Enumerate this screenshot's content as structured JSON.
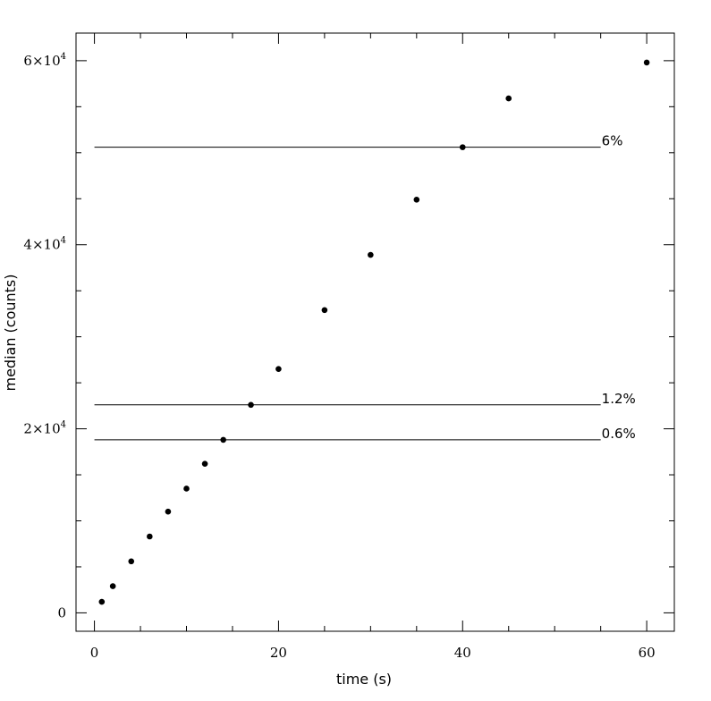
{
  "chart_data": {
    "type": "scatter",
    "xlabel": "time (s)",
    "ylabel": "median (counts)",
    "xlim": [
      -2,
      63
    ],
    "ylim": [
      -2000,
      63000
    ],
    "x_ticks": [
      {
        "value": 0,
        "label": "0"
      },
      {
        "value": 20,
        "label": "20"
      },
      {
        "value": 40,
        "label": "40"
      },
      {
        "value": 60,
        "label": "60"
      }
    ],
    "y_ticks": [
      {
        "value": 0,
        "base": "0",
        "exp": ""
      },
      {
        "value": 20000,
        "base": "2×10",
        "exp": "4"
      },
      {
        "value": 40000,
        "base": "4×10",
        "exp": "4"
      },
      {
        "value": 60000,
        "base": "6×10",
        "exp": "4"
      }
    ],
    "points": [
      {
        "x": 0.8,
        "y": 1200
      },
      {
        "x": 2,
        "y": 2900
      },
      {
        "x": 4,
        "y": 5600
      },
      {
        "x": 6,
        "y": 8300
      },
      {
        "x": 8,
        "y": 11000
      },
      {
        "x": 10,
        "y": 13500
      },
      {
        "x": 12,
        "y": 16200
      },
      {
        "x": 14,
        "y": 18800
      },
      {
        "x": 17,
        "y": 22600
      },
      {
        "x": 20,
        "y": 26500
      },
      {
        "x": 25,
        "y": 32900
      },
      {
        "x": 30,
        "y": 38900
      },
      {
        "x": 35,
        "y": 44900
      },
      {
        "x": 40,
        "y": 50600
      },
      {
        "x": 45,
        "y": 55900
      },
      {
        "x": 60,
        "y": 59800
      }
    ],
    "reference_lines": [
      {
        "y": 50600,
        "x_end": 55,
        "label": "6%"
      },
      {
        "y": 22600,
        "x_end": 55,
        "label": "1.2%"
      },
      {
        "y": 18800,
        "x_end": 55,
        "label": "0.6%"
      }
    ]
  }
}
